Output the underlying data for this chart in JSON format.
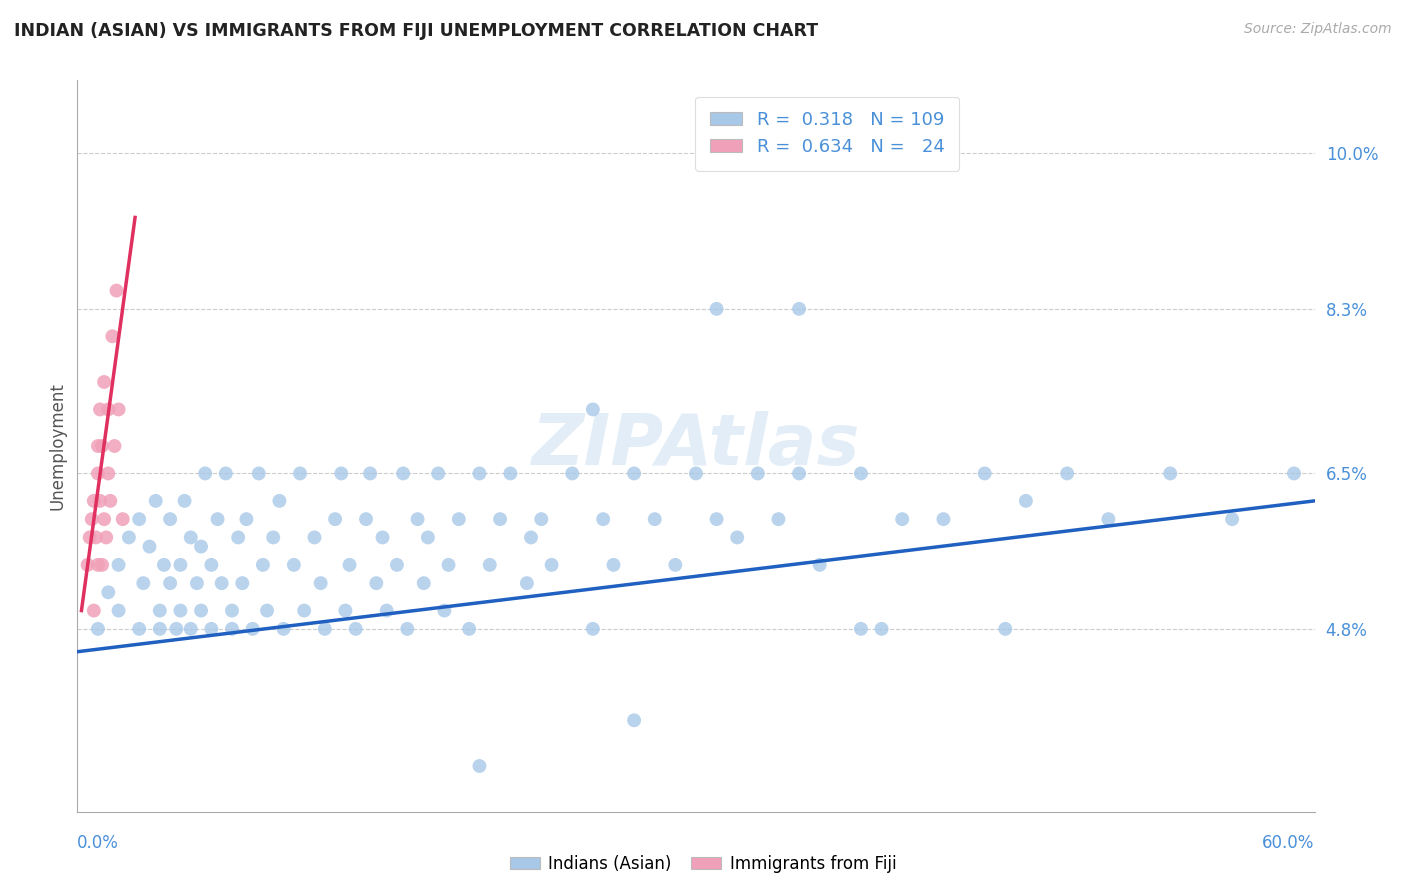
{
  "title": "INDIAN (ASIAN) VS IMMIGRANTS FROM FIJI UNEMPLOYMENT CORRELATION CHART",
  "source": "Source: ZipAtlas.com",
  "ylabel": "Unemployment",
  "yticks": [
    "4.8%",
    "6.5%",
    "8.3%",
    "10.0%"
  ],
  "ytick_vals": [
    0.048,
    0.065,
    0.083,
    0.1
  ],
  "xlim": [
    0.0,
    0.6
  ],
  "ylim": [
    0.028,
    0.108
  ],
  "color_blue": "#a8c8e8",
  "color_pink": "#f0a0b8",
  "color_blue_line": "#2060c0",
  "color_pink_line": "#e03060",
  "color_blue_text": "#4a90d9",
  "blue_scatter_x": [
    0.01,
    0.015,
    0.02,
    0.02,
    0.025,
    0.03,
    0.03,
    0.032,
    0.035,
    0.038,
    0.04,
    0.04,
    0.042,
    0.045,
    0.045,
    0.048,
    0.05,
    0.05,
    0.052,
    0.055,
    0.055,
    0.058,
    0.06,
    0.06,
    0.062,
    0.065,
    0.065,
    0.068,
    0.07,
    0.072,
    0.075,
    0.075,
    0.078,
    0.08,
    0.082,
    0.085,
    0.088,
    0.09,
    0.092,
    0.095,
    0.098,
    0.1,
    0.105,
    0.108,
    0.11,
    0.115,
    0.118,
    0.12,
    0.125,
    0.128,
    0.13,
    0.132,
    0.135,
    0.14,
    0.142,
    0.145,
    0.148,
    0.15,
    0.155,
    0.158,
    0.16,
    0.165,
    0.168,
    0.17,
    0.175,
    0.178,
    0.18,
    0.185,
    0.19,
    0.195,
    0.2,
    0.205,
    0.21,
    0.218,
    0.22,
    0.225,
    0.23,
    0.24,
    0.25,
    0.255,
    0.26,
    0.27,
    0.28,
    0.29,
    0.3,
    0.31,
    0.32,
    0.33,
    0.34,
    0.35,
    0.36,
    0.38,
    0.4,
    0.42,
    0.44,
    0.46,
    0.48,
    0.5,
    0.53,
    0.56,
    0.59,
    0.25,
    0.31,
    0.35,
    0.45,
    0.39,
    0.27,
    0.195,
    0.38
  ],
  "blue_scatter_y": [
    0.048,
    0.052,
    0.055,
    0.05,
    0.058,
    0.048,
    0.06,
    0.053,
    0.057,
    0.062,
    0.05,
    0.048,
    0.055,
    0.053,
    0.06,
    0.048,
    0.055,
    0.05,
    0.062,
    0.048,
    0.058,
    0.053,
    0.05,
    0.057,
    0.065,
    0.048,
    0.055,
    0.06,
    0.053,
    0.065,
    0.05,
    0.048,
    0.058,
    0.053,
    0.06,
    0.048,
    0.065,
    0.055,
    0.05,
    0.058,
    0.062,
    0.048,
    0.055,
    0.065,
    0.05,
    0.058,
    0.053,
    0.048,
    0.06,
    0.065,
    0.05,
    0.055,
    0.048,
    0.06,
    0.065,
    0.053,
    0.058,
    0.05,
    0.055,
    0.065,
    0.048,
    0.06,
    0.053,
    0.058,
    0.065,
    0.05,
    0.055,
    0.06,
    0.048,
    0.065,
    0.055,
    0.06,
    0.065,
    0.053,
    0.058,
    0.06,
    0.055,
    0.065,
    0.048,
    0.06,
    0.055,
    0.065,
    0.06,
    0.055,
    0.065,
    0.06,
    0.058,
    0.065,
    0.06,
    0.065,
    0.055,
    0.065,
    0.06,
    0.06,
    0.065,
    0.062,
    0.065,
    0.06,
    0.065,
    0.06,
    0.065,
    0.072,
    0.083,
    0.083,
    0.048,
    0.048,
    0.038,
    0.033,
    0.048
  ],
  "pink_scatter_x": [
    0.005,
    0.006,
    0.007,
    0.008,
    0.008,
    0.009,
    0.01,
    0.01,
    0.01,
    0.011,
    0.011,
    0.012,
    0.012,
    0.013,
    0.013,
    0.014,
    0.015,
    0.015,
    0.016,
    0.017,
    0.018,
    0.019,
    0.02,
    0.022
  ],
  "pink_scatter_y": [
    0.055,
    0.058,
    0.06,
    0.05,
    0.062,
    0.058,
    0.065,
    0.068,
    0.055,
    0.062,
    0.072,
    0.055,
    0.068,
    0.06,
    0.075,
    0.058,
    0.065,
    0.072,
    0.062,
    0.08,
    0.068,
    0.085,
    0.072,
    0.06
  ],
  "blue_line_x": [
    0.0,
    0.6
  ],
  "blue_line_y": [
    0.0455,
    0.062
  ],
  "pink_line_x": [
    0.002,
    0.028
  ],
  "pink_line_y": [
    0.05,
    0.093
  ]
}
